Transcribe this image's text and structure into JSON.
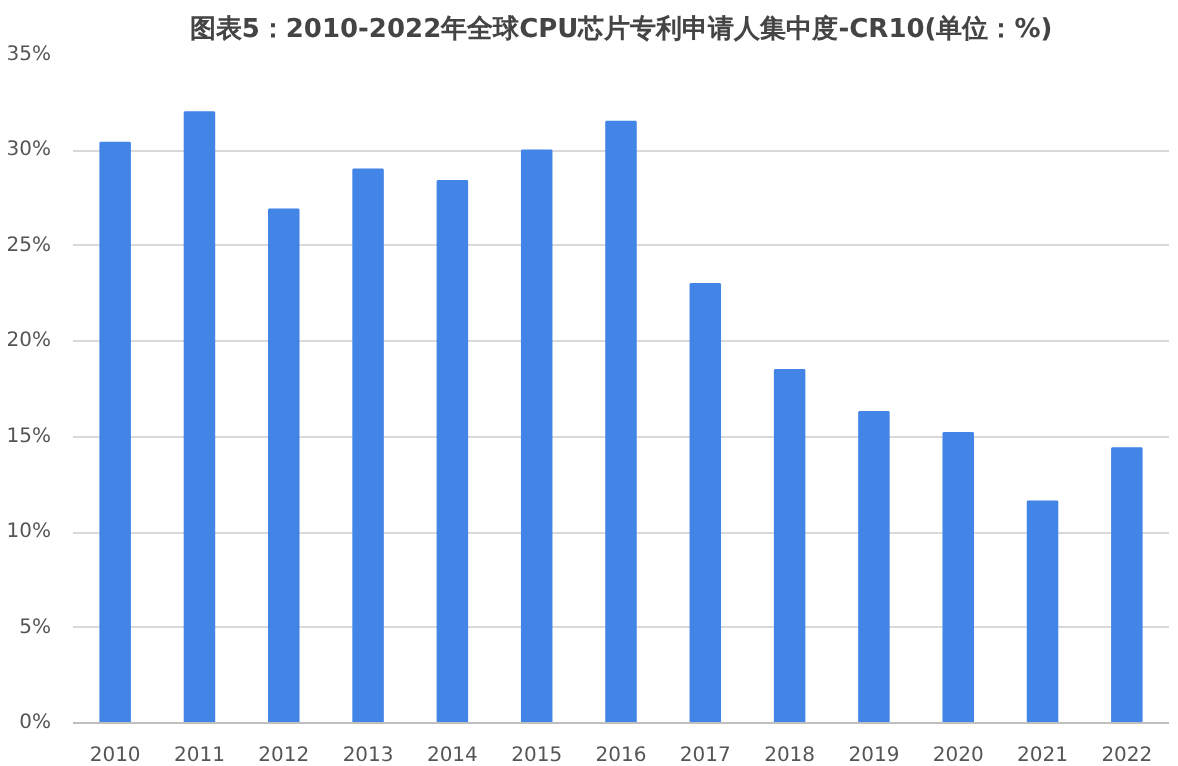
{
  "chart_data": {
    "type": "bar",
    "title": "图表5：2010-2022年全球CPU芯片专利申请人集中度-CR10(单位：%)",
    "categories": [
      "2010",
      "2011",
      "2012",
      "2013",
      "2014",
      "2015",
      "2016",
      "2017",
      "2018",
      "2019",
      "2020",
      "2021",
      "2022"
    ],
    "values": [
      30.4,
      32,
      26.9,
      29,
      28.4,
      30,
      31.5,
      23,
      18.5,
      16.3,
      15.2,
      11.6,
      14.4
    ],
    "color": "#4285e6",
    "ylim": [
      0,
      35
    ],
    "yticks": [
      {
        "value": 0,
        "label": "0%"
      },
      {
        "value": 5,
        "label": "5%"
      },
      {
        "value": 10,
        "label": "10%"
      },
      {
        "value": 15,
        "label": "15%"
      },
      {
        "value": 20,
        "label": "20%"
      },
      {
        "value": 25,
        "label": "25%"
      },
      {
        "value": 30,
        "label": "30%"
      },
      {
        "value": 35,
        "label": "35%"
      }
    ],
    "grid": "y"
  }
}
